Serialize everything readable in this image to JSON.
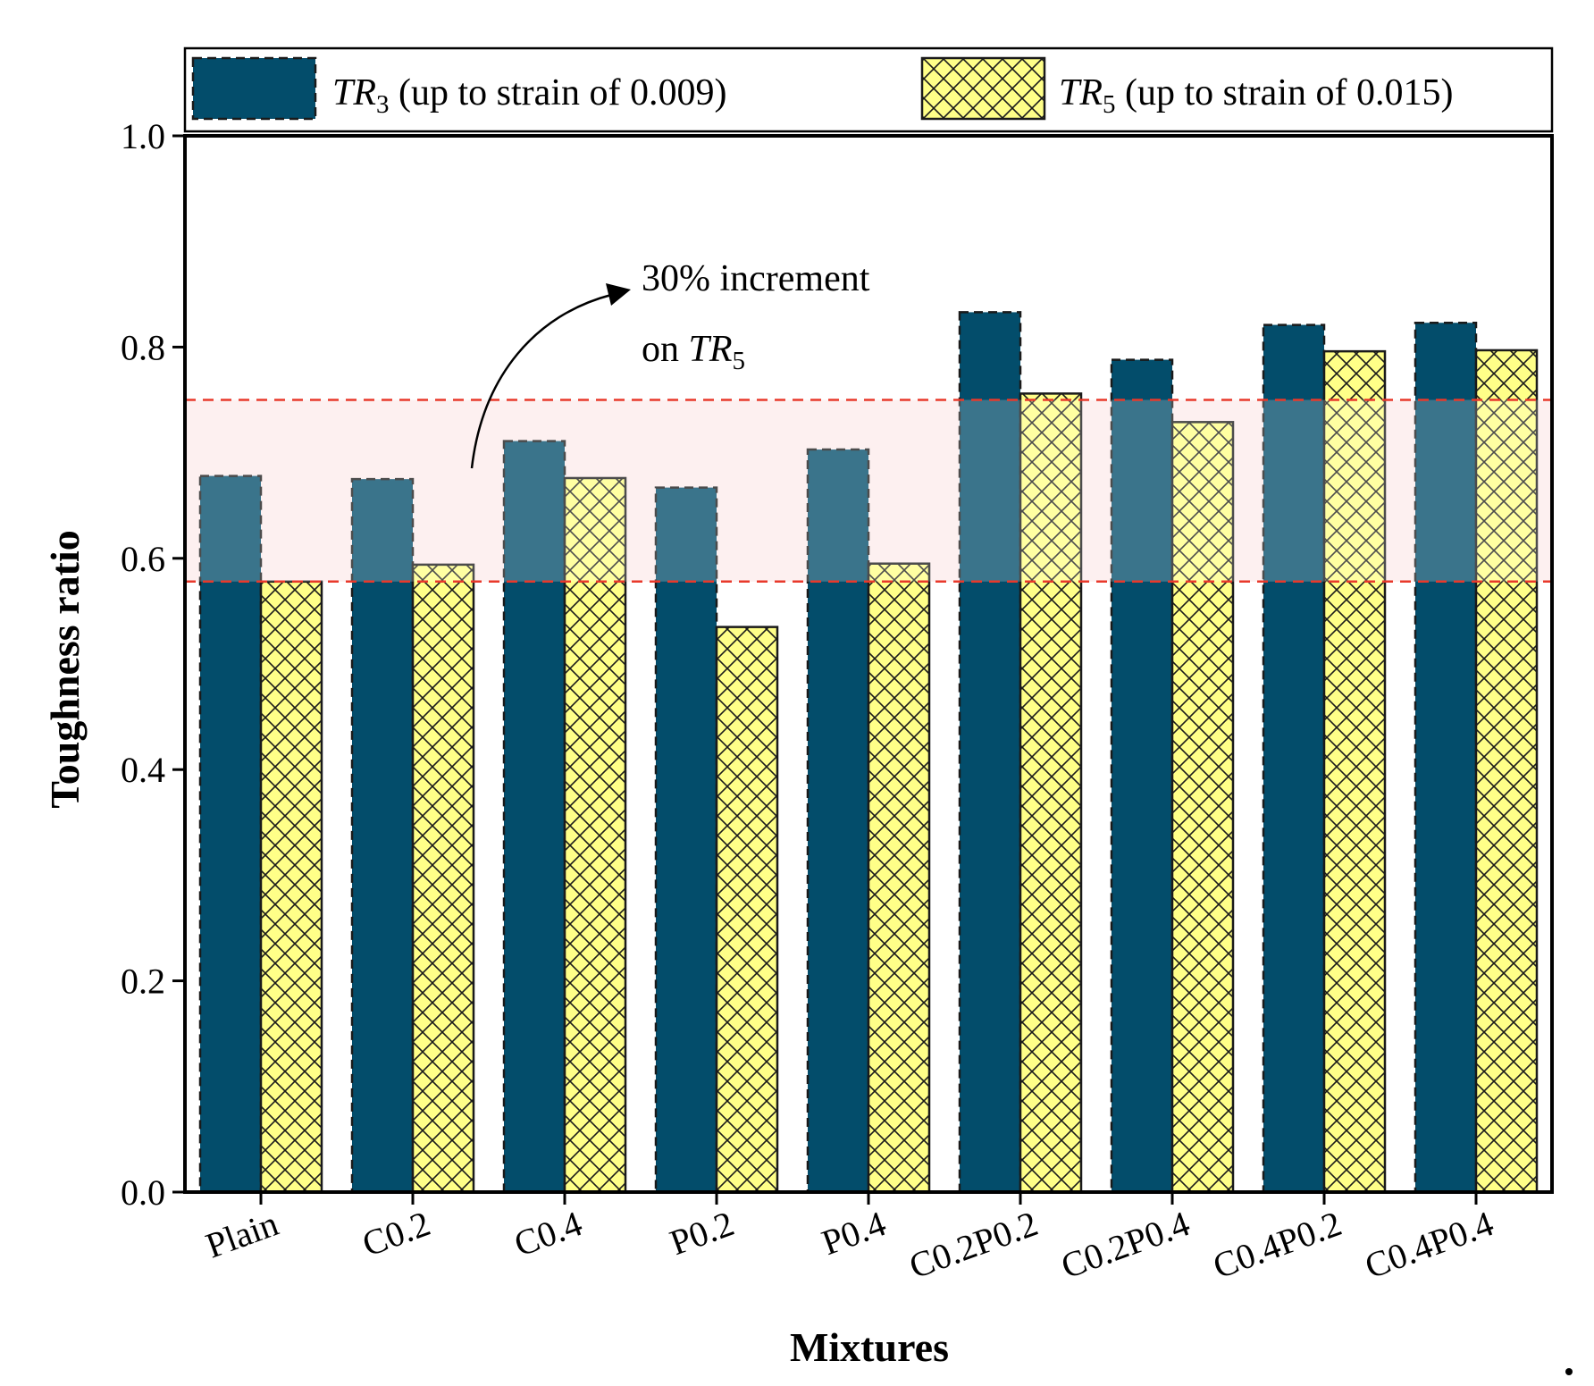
{
  "chart_data": {
    "type": "bar",
    "xlabel": "Mixtures",
    "ylabel": "Toughness ratio",
    "ylim": [
      0.0,
      1.0
    ],
    "yticks": [
      "0.0",
      "0.2",
      "0.4",
      "0.6",
      "0.8",
      "1.0"
    ],
    "grid": false,
    "legend_position": "top",
    "categories": [
      "Plain",
      "C0.2",
      "C0.4",
      "P0.2",
      "P0.4",
      "C0.2P0.2",
      "C0.2P0.4",
      "C0.4P0.2",
      "C0.4P0.4"
    ],
    "series": [
      {
        "name": "TR3 (up to strain of 0.009)",
        "legend_main": "TR",
        "legend_sub": "3",
        "legend_rest": " (up to strain of 0.009)",
        "color": "#034d6b",
        "values": [
          0.678,
          0.675,
          0.711,
          0.667,
          0.703,
          0.833,
          0.788,
          0.821,
          0.823
        ]
      },
      {
        "name": "TR5 (up to strain of 0.015)",
        "legend_main": "TR",
        "legend_sub": "5",
        "legend_rest": " (up to strain of 0.015)",
        "color": "#ffff88",
        "hatch": "crosshatch",
        "values": [
          0.578,
          0.594,
          0.676,
          0.535,
          0.595,
          0.756,
          0.729,
          0.796,
          0.797
        ]
      }
    ],
    "reference_band": {
      "lower": 0.578,
      "upper": 0.75,
      "line_color": "#e8392b",
      "fill_color": "#fdecec"
    },
    "annotation": {
      "line1": "30% increment",
      "line2_prefix": "on ",
      "line2_main": "TR",
      "line2_sub": "5"
    }
  }
}
